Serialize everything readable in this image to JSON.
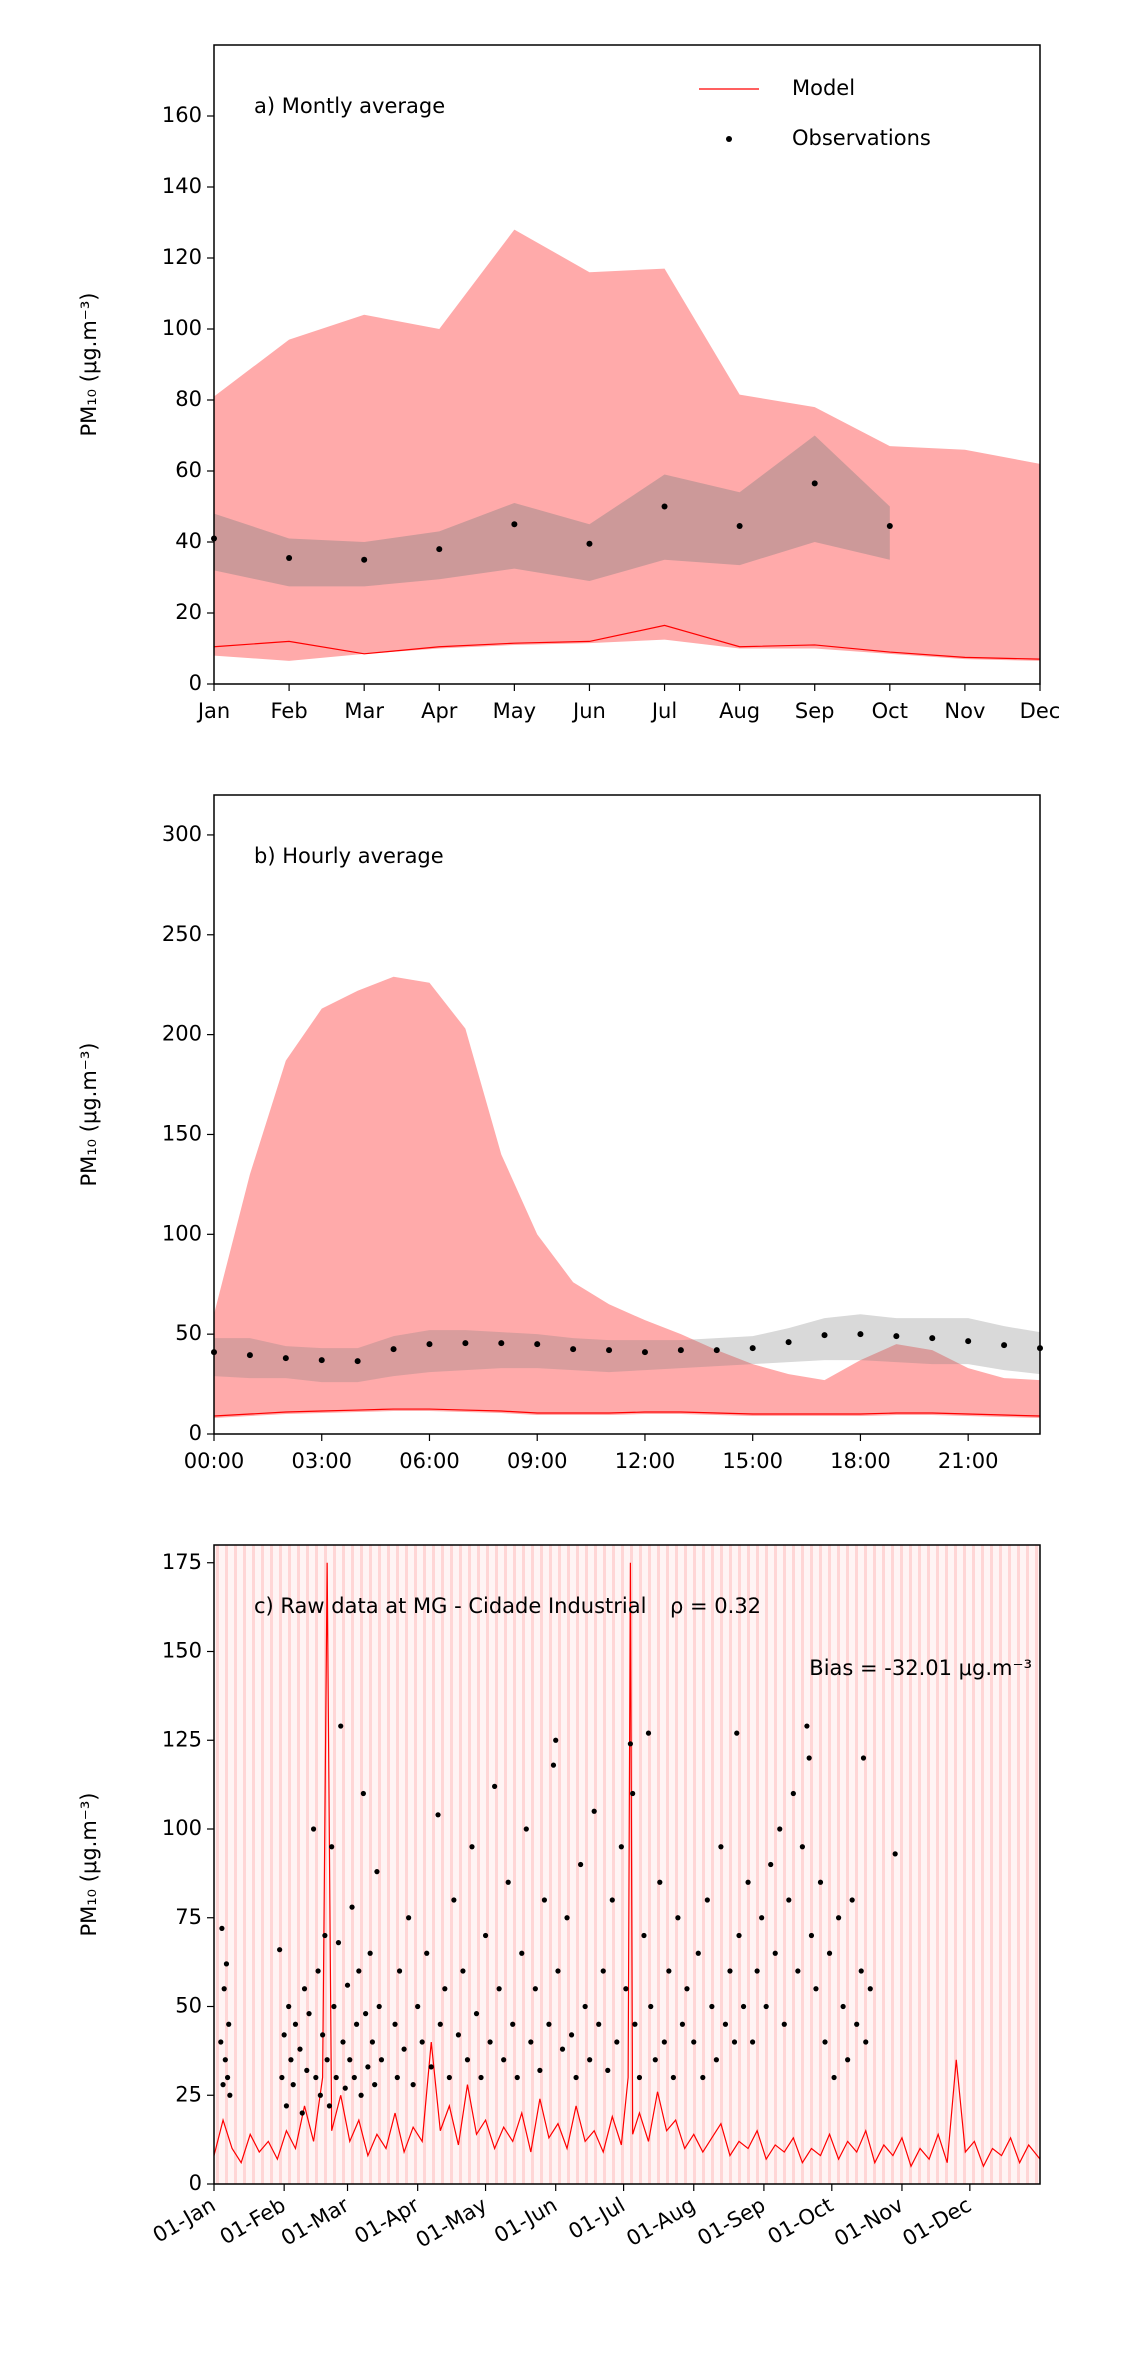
{
  "chart_data": [
    {
      "type": "line",
      "title": "a) Montly average",
      "ylabel": "PM₁₀ (μg.m⁻³)",
      "legend": "upper right",
      "categories": [
        "Jan",
        "Feb",
        "Mar",
        "Apr",
        "May",
        "Jun",
        "Jul",
        "Aug",
        "Sep",
        "Oct",
        "Nov",
        "Dec"
      ],
      "ylim": [
        0,
        180
      ],
      "yticks": [
        0,
        20,
        40,
        60,
        80,
        100,
        120,
        140,
        160
      ],
      "bands": [
        {
          "color": "#ffaaaa",
          "alpha": 1,
          "lower": [
            8,
            6.5,
            8.5,
            10,
            11,
            11.5,
            12.5,
            10,
            10,
            8.5,
            7,
            6.5
          ],
          "upper": [
            81,
            97,
            104,
            100,
            128,
            116,
            117,
            81.5,
            78,
            67,
            66,
            62
          ]
        },
        {
          "color": "#808080",
          "alpha": 0.4,
          "lower": [
            32,
            27.5,
            27.5,
            29.5,
            32.5,
            29,
            35,
            33.5,
            40,
            35,
            null,
            null
          ],
          "upper": [
            48,
            41,
            40,
            43,
            51,
            45,
            59,
            54,
            70,
            50,
            null,
            null
          ]
        }
      ],
      "series": [
        {
          "name": "Model",
          "type": "line",
          "color": "#ff0000",
          "values": [
            10.5,
            12,
            8.5,
            10.5,
            11.5,
            12,
            16.5,
            10.5,
            11,
            9,
            7.5,
            7
          ]
        },
        {
          "name": "Observations",
          "type": "scatter",
          "color": "#000000",
          "values": [
            41,
            35.5,
            35,
            38,
            45,
            39.5,
            50,
            44.5,
            56.5,
            44.5,
            null,
            null
          ]
        }
      ]
    },
    {
      "type": "line",
      "title": "b) Hourly average",
      "ylabel": "PM₁₀ (μg.m⁻³)",
      "x": [
        0,
        1,
        2,
        3,
        4,
        5,
        6,
        7,
        8,
        9,
        10,
        11,
        12,
        13,
        14,
        15,
        16,
        17,
        18,
        19,
        20,
        21,
        22,
        23
      ],
      "xlim": [
        0,
        23
      ],
      "xticks": [
        {
          "value": 0,
          "label": "00:00"
        },
        {
          "value": 3,
          "label": "03:00"
        },
        {
          "value": 6,
          "label": "06:00"
        },
        {
          "value": 9,
          "label": "09:00"
        },
        {
          "value": 12,
          "label": "12:00"
        },
        {
          "value": 15,
          "label": "15:00"
        },
        {
          "value": 18,
          "label": "18:00"
        },
        {
          "value": 21,
          "label": "21:00"
        }
      ],
      "ylim": [
        0,
        320
      ],
      "yticks": [
        0,
        50,
        100,
        150,
        200,
        250,
        300
      ],
      "bands": [
        {
          "color": "#ffaaaa",
          "alpha": 1,
          "lower": [
            8,
            9,
            10,
            10.5,
            11,
            11.5,
            11.5,
            11,
            10.5,
            9.5,
            9.5,
            9.5,
            10,
            10,
            9.5,
            9,
            9,
            9,
            9,
            9.5,
            9.5,
            9,
            8.5,
            8
          ],
          "upper": [
            60,
            130,
            187,
            213,
            222,
            229,
            226,
            203,
            140,
            100,
            76,
            65,
            57,
            50,
            42,
            35,
            30,
            27,
            37,
            45,
            42,
            33,
            28,
            27
          ]
        },
        {
          "color": "#808080",
          "alpha": 0.3,
          "lower": [
            29,
            28,
            28,
            26,
            26,
            29,
            31,
            32,
            33,
            33,
            32,
            31,
            32,
            33,
            34,
            35,
            36,
            37,
            37,
            36,
            35,
            35,
            32,
            30
          ],
          "upper": [
            48,
            48,
            44,
            43,
            43,
            49,
            52,
            52,
            51,
            50,
            48,
            47,
            47,
            47,
            48,
            49,
            53,
            58,
            60,
            58,
            58,
            58,
            54,
            51
          ]
        }
      ],
      "series": [
        {
          "type": "line",
          "color": "#ff0000",
          "values": [
            9,
            10,
            11,
            11.5,
            12,
            12.5,
            12.5,
            12,
            11.5,
            10.5,
            10.5,
            10.5,
            11,
            11,
            10.5,
            10,
            10,
            10,
            10,
            10.5,
            10.5,
            10,
            9.5,
            9
          ]
        },
        {
          "type": "scatter",
          "color": "#000000",
          "values": [
            41,
            39.5,
            38,
            37,
            36.5,
            42.5,
            45,
            45.5,
            45.5,
            45,
            42.5,
            42,
            41,
            42,
            42,
            43,
            46,
            49.5,
            50,
            49,
            48,
            46.5,
            44.5,
            43
          ]
        }
      ]
    },
    {
      "type": "line",
      "title": "c) Raw data at MG - Cidade Industrial",
      "ylabel": "PM₁₀ (μg.m⁻³)",
      "stats": [
        "ρ = 0.32",
        "Bias = -32.01 μg.m⁻³"
      ],
      "xlim": [
        0,
        365
      ],
      "xticks": [
        {
          "value": 0,
          "label": "01-Jan"
        },
        {
          "value": 31,
          "label": "01-Feb"
        },
        {
          "value": 59,
          "label": "01-Mar"
        },
        {
          "value": 90,
          "label": "01-Apr"
        },
        {
          "value": 120,
          "label": "01-May"
        },
        {
          "value": 151,
          "label": "01-Jun"
        },
        {
          "value": 181,
          "label": "01-Jul"
        },
        {
          "value": 212,
          "label": "01-Aug"
        },
        {
          "value": 243,
          "label": "01-Sep"
        },
        {
          "value": 273,
          "label": "01-Oct"
        },
        {
          "value": 304,
          "label": "01-Nov"
        },
        {
          "value": 334,
          "label": "01-Dec"
        }
      ],
      "ylim": [
        0,
        180
      ],
      "yticks": [
        0,
        25,
        50,
        75,
        100,
        125,
        150,
        175
      ],
      "series": [
        {
          "type": "line",
          "color": "#ff0000",
          "x": [
            0,
            4,
            8,
            12,
            16,
            20,
            24,
            28,
            32,
            36,
            40,
            44,
            48,
            50,
            52,
            56,
            60,
            64,
            68,
            72,
            76,
            80,
            84,
            88,
            92,
            96,
            100,
            104,
            108,
            112,
            116,
            120,
            124,
            128,
            132,
            136,
            140,
            144,
            148,
            152,
            156,
            160,
            164,
            168,
            172,
            176,
            180,
            183,
            184,
            185,
            188,
            192,
            196,
            200,
            204,
            208,
            212,
            216,
            220,
            224,
            228,
            232,
            236,
            240,
            244,
            248,
            252,
            256,
            260,
            264,
            268,
            272,
            276,
            280,
            284,
            288,
            292,
            296,
            300,
            304,
            308,
            312,
            316,
            320,
            324,
            328,
            332,
            336,
            340,
            344,
            348,
            352,
            356,
            360,
            365
          ],
          "values": [
            8,
            18,
            10,
            6,
            14,
            9,
            12,
            7,
            15,
            10,
            22,
            12,
            30,
            175,
            15,
            25,
            12,
            18,
            8,
            14,
            10,
            20,
            9,
            16,
            12,
            40,
            15,
            22,
            11,
            28,
            14,
            18,
            10,
            16,
            12,
            20,
            9,
            24,
            13,
            17,
            10,
            22,
            12,
            15,
            9,
            19,
            11,
            30,
            175,
            14,
            20,
            12,
            26,
            15,
            18,
            10,
            14,
            9,
            13,
            17,
            8,
            12,
            10,
            15,
            7,
            11,
            9,
            13,
            6,
            10,
            8,
            14,
            7,
            12,
            9,
            15,
            6,
            11,
            8,
            13,
            5,
            10,
            7,
            14,
            6,
            35,
            9,
            12,
            5,
            10,
            8,
            13,
            6,
            11,
            7
          ]
        },
        {
          "type": "scatter",
          "color": "#000000",
          "x": [
            3,
            3.5,
            4,
            4.5,
            5,
            5.5,
            6,
            6.5,
            7,
            29,
            30,
            31,
            32,
            33,
            34,
            35,
            36,
            38,
            39,
            40,
            41,
            42,
            44,
            45,
            46,
            47,
            48,
            49,
            50,
            51,
            52,
            53,
            54,
            55,
            56,
            57,
            58,
            59,
            60,
            61,
            62,
            63,
            64,
            65,
            66,
            67,
            68,
            69,
            70,
            71,
            72,
            73,
            74,
            80,
            81,
            82,
            84,
            86,
            88,
            90,
            92,
            94,
            96,
            99,
            100,
            102,
            104,
            106,
            108,
            110,
            112,
            114,
            116,
            118,
            120,
            122,
            124,
            126,
            128,
            130,
            132,
            134,
            136,
            138,
            140,
            142,
            144,
            146,
            148,
            150,
            151,
            152,
            154,
            156,
            158,
            160,
            162,
            164,
            166,
            168,
            170,
            172,
            174,
            176,
            178,
            180,
            182,
            184,
            185,
            186,
            188,
            190,
            192,
            193,
            195,
            197,
            199,
            201,
            203,
            205,
            207,
            209,
            212,
            214,
            216,
            218,
            220,
            222,
            224,
            226,
            228,
            230,
            231,
            232,
            234,
            236,
            238,
            240,
            242,
            244,
            246,
            248,
            250,
            252,
            254,
            256,
            258,
            260,
            262,
            263,
            264,
            266,
            268,
            270,
            272,
            274,
            276,
            278,
            280,
            282,
            284,
            286,
            287,
            288,
            290,
            301
          ],
          "values": [
            40,
            72,
            28,
            55,
            35,
            62,
            30,
            45,
            25,
            66,
            30,
            42,
            22,
            50,
            35,
            28,
            45,
            38,
            20,
            55,
            32,
            48,
            100,
            30,
            60,
            25,
            42,
            70,
            35,
            22,
            95,
            50,
            30,
            68,
            129,
            40,
            27,
            56,
            35,
            78,
            30,
            45,
            60,
            25,
            110,
            48,
            33,
            65,
            40,
            28,
            88,
            50,
            35,
            45,
            30,
            60,
            38,
            75,
            28,
            50,
            40,
            65,
            33,
            104,
            45,
            55,
            30,
            80,
            42,
            60,
            35,
            95,
            48,
            30,
            70,
            40,
            112,
            55,
            35,
            85,
            45,
            30,
            65,
            100,
            40,
            55,
            32,
            80,
            45,
            118,
            125,
            60,
            38,
            75,
            42,
            30,
            90,
            50,
            35,
            105,
            45,
            60,
            32,
            80,
            40,
            95,
            55,
            124,
            110,
            45,
            30,
            70,
            127,
            50,
            35,
            85,
            40,
            60,
            30,
            75,
            45,
            55,
            40,
            65,
            30,
            80,
            50,
            35,
            95,
            45,
            60,
            40,
            127,
            70,
            50,
            85,
            40,
            60,
            75,
            50,
            90,
            65,
            100,
            45,
            80,
            110,
            60,
            95,
            129,
            120,
            70,
            55,
            85,
            40,
            65,
            30,
            75,
            50,
            35,
            80,
            45,
            60,
            120,
            40,
            55,
            93
          ]
        }
      ]
    }
  ]
}
